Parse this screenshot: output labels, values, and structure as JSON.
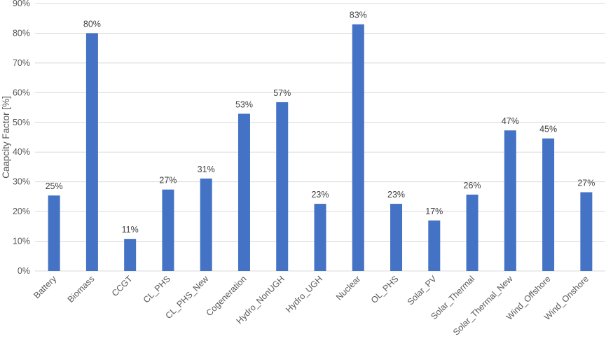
{
  "chart_data": {
    "type": "bar",
    "title": "",
    "xlabel": "",
    "ylabel": "Caapcity Factor [%]",
    "ylim": [
      0,
      90
    ],
    "y_ticks": [
      "0%",
      "10%",
      "20%",
      "30%",
      "40%",
      "50%",
      "60%",
      "70%",
      "80%",
      "90%"
    ],
    "grid": true,
    "bar_color": "#4472C4",
    "categories": [
      "Battery",
      "Biomass",
      "CCGT",
      "CL_PHS",
      "CL_PHS_New",
      "Cogeneration",
      "Hydro_NonUGH",
      "Hydro_UGH",
      "Nuclear",
      "OL_PHS",
      "Solar_PV",
      "Solar_Thermal",
      "Solar_Thermal_New",
      "Wind_Offshore",
      "Wind_Onshore"
    ],
    "values": [
      25.4,
      80.0,
      10.8,
      27.4,
      31.1,
      52.9,
      56.8,
      22.6,
      83.0,
      22.6,
      17.0,
      25.7,
      47.3,
      44.6,
      26.5
    ],
    "data_labels": [
      "25%",
      "80%",
      "11%",
      "27%",
      "31%",
      "53%",
      "57%",
      "23%",
      "83%",
      "23%",
      "17%",
      "26%",
      "47%",
      "45%",
      "27%"
    ]
  }
}
